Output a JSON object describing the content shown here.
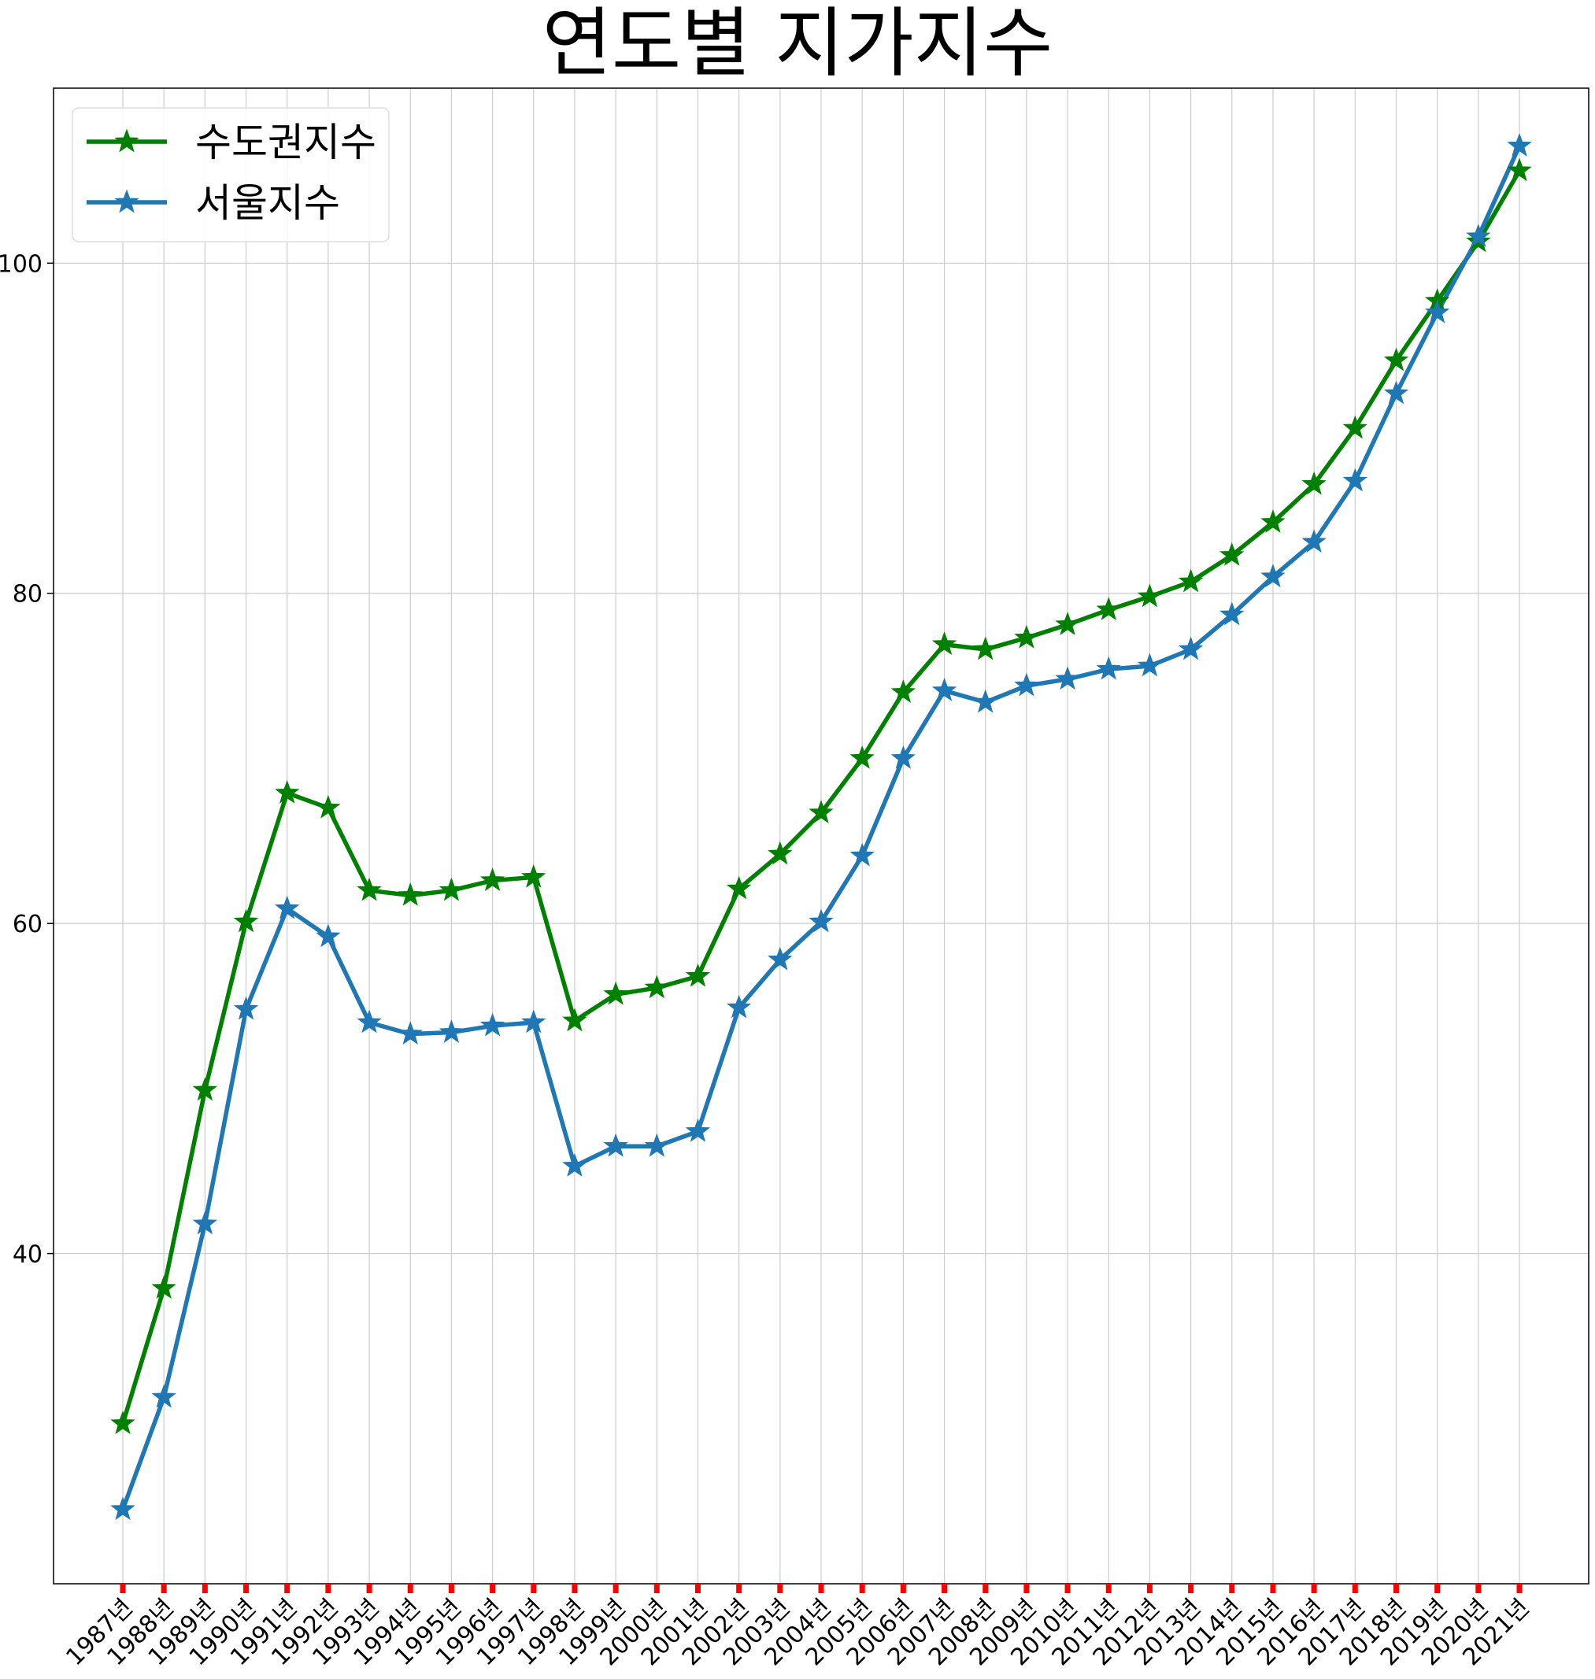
{
  "chart_data": {
    "type": "line",
    "title": "연도별 지가지수",
    "xlabel": "",
    "ylabel": "",
    "categories": [
      "1987년",
      "1988년",
      "1989년",
      "1990년",
      "1991년",
      "1992년",
      "1993년",
      "1994년",
      "1995년",
      "1996년",
      "1997년",
      "1998년",
      "1999년",
      "2000년",
      "2001년",
      "2002년",
      "2003년",
      "2004년",
      "2005년",
      "2006년",
      "2007년",
      "2008년",
      "2009년",
      "2010년",
      "2011년",
      "2012년",
      "2013년",
      "2014년",
      "2015년",
      "2016년",
      "2017년",
      "2018년",
      "2019년",
      "2020년",
      "2021년"
    ],
    "series": [
      {
        "name": "수도권지수",
        "color": "#008000",
        "marker": "star",
        "values": [
          29.7,
          37.9,
          49.9,
          60.1,
          67.9,
          67.0,
          62.0,
          61.7,
          62.0,
          62.6,
          62.8,
          54.1,
          55.7,
          56.1,
          56.8,
          62.1,
          64.2,
          66.7,
          70.0,
          74.0,
          76.9,
          76.6,
          77.3,
          78.1,
          79.0,
          79.8,
          80.7,
          82.3,
          84.3,
          86.6,
          90.0,
          94.1,
          97.7,
          101.3,
          105.6
        ]
      },
      {
        "name": "서울지수",
        "color": "#1f77b4",
        "marker": "star",
        "values": [
          24.5,
          31.3,
          41.8,
          54.8,
          60.9,
          59.2,
          54.0,
          53.3,
          53.4,
          53.8,
          54.0,
          45.3,
          46.5,
          46.5,
          47.4,
          54.9,
          57.8,
          60.1,
          64.1,
          70.0,
          74.1,
          73.4,
          74.4,
          74.8,
          75.4,
          75.6,
          76.6,
          78.7,
          81.0,
          83.1,
          86.8,
          92.1,
          97.0,
          101.6,
          107.1
        ]
      }
    ],
    "yticks": [
      40,
      60,
      80,
      100
    ],
    "ylim": [
      20,
      110.6
    ],
    "grid": true,
    "legend_position": "top-left",
    "tick_mark_color": "#ff0000"
  }
}
